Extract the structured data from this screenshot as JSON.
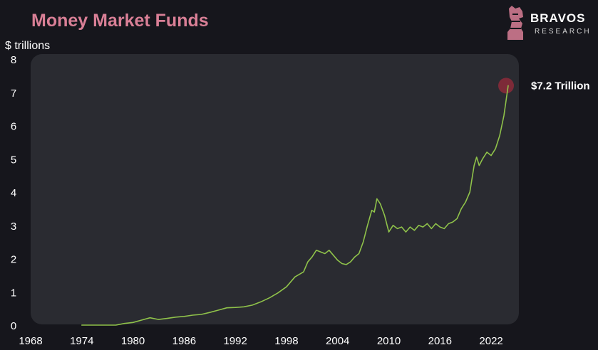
{
  "brand": {
    "name": "BRAVOS",
    "subtitle": "RESEARCH",
    "logo_icon": "knight-chess-piece-icon",
    "accent_color": "#d97f96"
  },
  "chart_data": {
    "type": "line",
    "title": "Money Market Funds",
    "ylabel": "$ trillions",
    "xlabel": "",
    "xlim": [
      1968,
      2024.5
    ],
    "ylim": [
      0,
      8
    ],
    "x_ticks": [
      1968,
      1974,
      1980,
      1986,
      1992,
      1998,
      2004,
      2010,
      2016,
      2022
    ],
    "y_ticks": [
      0,
      1,
      2,
      3,
      4,
      5,
      6,
      7,
      8
    ],
    "grid": false,
    "legend": "none",
    "line_color": "#8fc24a",
    "background_color": "#16161c",
    "plot_area_color": "#2a2b31",
    "highlight_color": "#8c2a3a",
    "series": [
      {
        "x": [
          1974,
          1976,
          1978,
          1979,
          1980,
          1981,
          1982,
          1983,
          1984,
          1985,
          1986,
          1987,
          1988,
          1989,
          1990,
          1991,
          1992,
          1993,
          1994,
          1995,
          1996,
          1997,
          1998,
          1999,
          2000,
          2000.5,
          2001,
          2001.5,
          2002,
          2002.5,
          2003,
          2003.5,
          2004,
          2004.5,
          2005,
          2005.5,
          2006,
          2006.5,
          2007,
          2007.5,
          2008,
          2008.3,
          2008.6,
          2009,
          2009.5,
          2010,
          2010.5,
          2011,
          2011.5,
          2012,
          2012.5,
          2013,
          2013.5,
          2014,
          2014.5,
          2015,
          2015.5,
          2016,
          2016.5,
          2017,
          2017.5,
          2018,
          2018.5,
          2019,
          2019.5,
          2020,
          2020.3,
          2020.6,
          2021,
          2021.5,
          2022,
          2022.5,
          2023,
          2023.5,
          2024
        ],
        "y": [
          0.0,
          0.0,
          0.0,
          0.05,
          0.08,
          0.15,
          0.22,
          0.17,
          0.2,
          0.24,
          0.26,
          0.3,
          0.32,
          0.38,
          0.45,
          0.52,
          0.53,
          0.55,
          0.6,
          0.7,
          0.82,
          0.97,
          1.15,
          1.45,
          1.6,
          1.9,
          2.05,
          2.25,
          2.2,
          2.15,
          2.25,
          2.1,
          1.95,
          1.85,
          1.82,
          1.9,
          2.05,
          2.15,
          2.5,
          3.0,
          3.45,
          3.4,
          3.8,
          3.65,
          3.3,
          2.8,
          3.0,
          2.9,
          2.95,
          2.8,
          2.95,
          2.85,
          3.0,
          2.95,
          3.05,
          2.9,
          3.05,
          2.95,
          2.9,
          3.05,
          3.1,
          3.2,
          3.5,
          3.7,
          4.0,
          4.8,
          5.05,
          4.8,
          5.0,
          5.2,
          5.1,
          5.3,
          5.7,
          6.3,
          7.2
        ]
      }
    ],
    "annotation": {
      "text": "$7.2 Trillion",
      "x": 2024,
      "y": 7.2
    }
  }
}
